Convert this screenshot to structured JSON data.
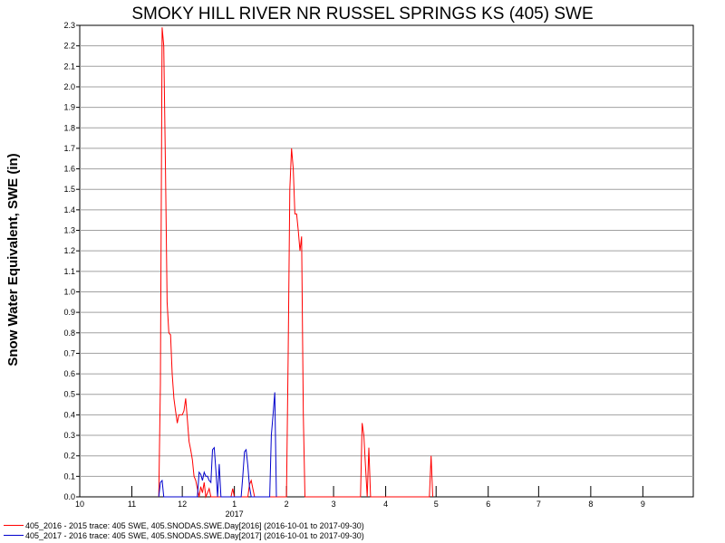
{
  "chart_data": {
    "type": "line",
    "title": "SMOKY HILL RIVER NR RUSSEL SPRINGS KS (405) SWE",
    "ylabel": "Snow Water Equivalent, SWE (in)",
    "xlabel": "",
    "ylim": [
      0,
      2.3
    ],
    "yticks": [
      "0.0",
      "0.1",
      "0.2",
      "0.3",
      "0.4",
      "0.5",
      "0.6",
      "0.7",
      "0.8",
      "0.9",
      "1.0",
      "1.1",
      "1.2",
      "1.3",
      "1.4",
      "1.5",
      "1.6",
      "1.7",
      "1.8",
      "1.9",
      "2.0",
      "2.1",
      "2.2",
      "2.3"
    ],
    "xlim": [
      "2016-10-01",
      "2017-09-30"
    ],
    "xticks": [
      {
        "date": "2016-10-01",
        "label": "10"
      },
      {
        "date": "2016-11-01",
        "label": "11"
      },
      {
        "date": "2016-12-01",
        "label": "12"
      },
      {
        "date": "2017-01-01",
        "label": "1"
      },
      {
        "date": "2017-02-01",
        "label": "2"
      },
      {
        "date": "2017-03-01",
        "label": "3"
      },
      {
        "date": "2017-04-01",
        "label": "4"
      },
      {
        "date": "2017-05-01",
        "label": "5"
      },
      {
        "date": "2017-06-01",
        "label": "6"
      },
      {
        "date": "2017-07-01",
        "label": "7"
      },
      {
        "date": "2017-08-01",
        "label": "8"
      },
      {
        "date": "2017-09-01",
        "label": "9"
      }
    ],
    "year_label": {
      "date": "2017-01-01",
      "label": "2017"
    },
    "grid": true,
    "legend_position": "bottom-left",
    "series": [
      {
        "name": "405_2016 - 2015 trace: 405 SWE, 405.SNODAS.SWE.Day[2016] (2016-10-01 to 2017-09-30)",
        "color": "#ff0000",
        "points": [
          [
            "2016-11-17",
            0
          ],
          [
            "2016-11-18",
            0.55
          ],
          [
            "2016-11-19",
            2.29
          ],
          [
            "2016-11-20",
            2.2
          ],
          [
            "2016-11-21",
            1.6
          ],
          [
            "2016-11-22",
            0.95
          ],
          [
            "2016-11-23",
            0.8
          ],
          [
            "2016-11-24",
            0.79
          ],
          [
            "2016-11-25",
            0.6
          ],
          [
            "2016-11-26",
            0.48
          ],
          [
            "2016-11-27",
            0.42
          ],
          [
            "2016-11-28",
            0.36
          ],
          [
            "2016-11-29",
            0.4
          ],
          [
            "2016-11-30",
            0.4
          ],
          [
            "2016-12-01",
            0.4
          ],
          [
            "2016-12-02",
            0.42
          ],
          [
            "2016-12-03",
            0.48
          ],
          [
            "2016-12-04",
            0.38
          ],
          [
            "2016-12-05",
            0.27
          ],
          [
            "2016-12-06",
            0.23
          ],
          [
            "2016-12-07",
            0.18
          ],
          [
            "2016-12-08",
            0.1
          ],
          [
            "2016-12-09",
            0.08
          ],
          [
            "2016-12-10",
            0.04
          ],
          [
            "2016-12-11",
            0.0
          ],
          [
            "2016-12-12",
            0.05
          ],
          [
            "2016-12-13",
            0.02
          ],
          [
            "2016-12-14",
            0.07
          ],
          [
            "2016-12-15",
            0.0
          ],
          [
            "2016-12-16",
            0.02
          ],
          [
            "2016-12-17",
            0.04
          ],
          [
            "2016-12-18",
            0.0
          ],
          [
            "2016-12-30",
            0.0
          ],
          [
            "2016-12-31",
            0.04
          ],
          [
            "2017-01-01",
            0.0
          ],
          [
            "2017-01-09",
            0.0
          ],
          [
            "2017-01-10",
            0.06
          ],
          [
            "2017-01-11",
            0.08
          ],
          [
            "2017-01-12",
            0.04
          ],
          [
            "2017-01-13",
            0.0
          ],
          [
            "2017-02-01",
            0.0
          ],
          [
            "2017-02-02",
            0.7
          ],
          [
            "2017-02-03",
            1.5
          ],
          [
            "2017-02-04",
            1.7
          ],
          [
            "2017-02-05",
            1.6
          ],
          [
            "2017-02-06",
            1.38
          ],
          [
            "2017-02-07",
            1.38
          ],
          [
            "2017-02-08",
            1.3
          ],
          [
            "2017-02-09",
            1.2
          ],
          [
            "2017-02-10",
            1.27
          ],
          [
            "2017-02-11",
            0.4
          ],
          [
            "2017-02-12",
            0.0
          ],
          [
            "2017-03-17",
            0.0
          ],
          [
            "2017-03-18",
            0.36
          ],
          [
            "2017-03-19",
            0.3
          ],
          [
            "2017-03-20",
            0.15
          ],
          [
            "2017-03-21",
            0.0
          ],
          [
            "2017-03-22",
            0.24
          ],
          [
            "2017-03-23",
            0.0
          ],
          [
            "2017-04-27",
            0.0
          ],
          [
            "2017-04-28",
            0.2
          ],
          [
            "2017-04-29",
            0.0
          ]
        ]
      },
      {
        "name": "405_2017 - 2016 trace: 405 SWE, 405.SNODAS.SWE.Day[2017] (2016-10-01 to 2017-09-30)",
        "color": "#0000cc",
        "points": [
          [
            "2016-11-17",
            0
          ],
          [
            "2016-11-18",
            0.07
          ],
          [
            "2016-11-19",
            0.08
          ],
          [
            "2016-11-20",
            0.0
          ],
          [
            "2016-12-10",
            0.0
          ],
          [
            "2016-12-11",
            0.12
          ],
          [
            "2016-12-12",
            0.11
          ],
          [
            "2016-12-13",
            0.08
          ],
          [
            "2016-12-14",
            0.12
          ],
          [
            "2016-12-15",
            0.1
          ],
          [
            "2016-12-16",
            0.1
          ],
          [
            "2016-12-17",
            0.08
          ],
          [
            "2016-12-18",
            0.07
          ],
          [
            "2016-12-19",
            0.23
          ],
          [
            "2016-12-20",
            0.24
          ],
          [
            "2016-12-21",
            0.13
          ],
          [
            "2016-12-22",
            0.0
          ],
          [
            "2016-12-23",
            0.16
          ],
          [
            "2016-12-24",
            0.0
          ],
          [
            "2017-01-05",
            0.0
          ],
          [
            "2017-01-06",
            0.1
          ],
          [
            "2017-01-07",
            0.22
          ],
          [
            "2017-01-08",
            0.23
          ],
          [
            "2017-01-09",
            0.15
          ],
          [
            "2017-01-10",
            0.05
          ],
          [
            "2017-01-11",
            0.0
          ],
          [
            "2017-01-22",
            0.0
          ],
          [
            "2017-01-23",
            0.3
          ],
          [
            "2017-01-24",
            0.4
          ],
          [
            "2017-01-25",
            0.51
          ],
          [
            "2017-01-26",
            0.0
          ]
        ]
      }
    ]
  }
}
